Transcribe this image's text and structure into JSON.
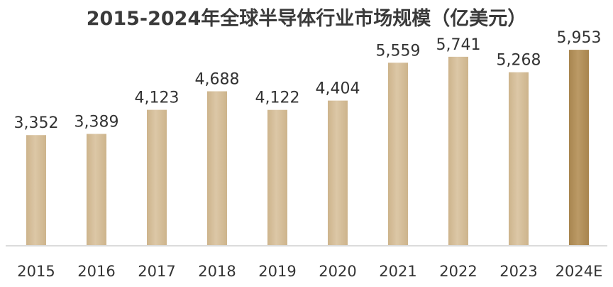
{
  "chart_data": {
    "type": "bar",
    "title": "2015-2024年全球半导体行业市场规模（亿美元）",
    "xlabel": "",
    "ylabel": "",
    "categories": [
      "2015",
      "2016",
      "2017",
      "2018",
      "2019",
      "2020",
      "2021",
      "2022",
      "2023",
      "2024E"
    ],
    "values": [
      3352,
      3389,
      4123,
      4688,
      4122,
      4404,
      5559,
      5741,
      5268,
      5953
    ],
    "data_labels": [
      "3,352",
      "3,389",
      "4,123",
      "4,688",
      "4,122",
      "4,404",
      "5,559",
      "5,741",
      "5,268",
      "5,953"
    ],
    "ylim": [
      0,
      6280
    ],
    "grid": false,
    "legend": "none",
    "colors": {
      "bar": "#d9c3a1",
      "bar_highlight": "#b7955f",
      "axis": "#cccccc",
      "text": "#333333"
    },
    "highlight_index": 9
  }
}
